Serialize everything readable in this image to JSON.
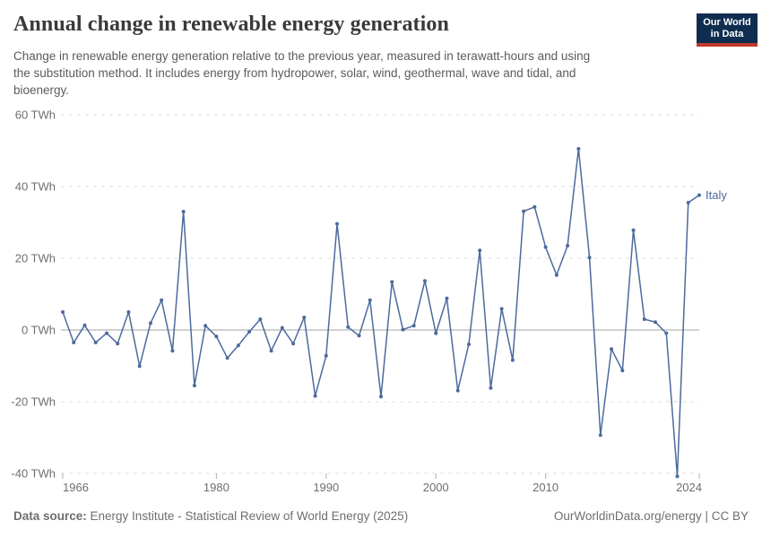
{
  "header": {
    "title": "Annual change in renewable energy generation",
    "subtitle_lines": [
      "Change in renewable energy generation relative to the previous year, measured in terawatt-hours and using",
      "the substitution method. It includes energy from hydropower, solar, wind, geothermal, wave and tidal, and",
      "bioenergy."
    ],
    "logo": {
      "line1": "Our World",
      "line2": "in Data",
      "bg_color": "#0f2e4f",
      "stripe_color": "#c0392b"
    }
  },
  "chart_data": {
    "type": "line",
    "title": "Annual change in renewable energy generation",
    "unit": "TWh",
    "xlabel": "",
    "ylabel": "",
    "ylim": [
      -45,
      62
    ],
    "xlim": [
      1966,
      2024
    ],
    "grid": "horizontal-dashed",
    "zero_line": true,
    "y_ticks": [
      60,
      40,
      20,
      0,
      -20,
      -40
    ],
    "y_tick_suffix": " TWh",
    "x_ticks": [
      1966,
      1980,
      1990,
      2000,
      2010,
      2024
    ],
    "legend_position": "end-of-line",
    "series": [
      {
        "name": "Italy",
        "color": "#4c6a9c",
        "x": [
          1966,
          1967,
          1968,
          1969,
          1970,
          1971,
          1972,
          1973,
          1974,
          1975,
          1976,
          1977,
          1978,
          1979,
          1980,
          1981,
          1982,
          1983,
          1984,
          1985,
          1986,
          1987,
          1988,
          1989,
          1990,
          1991,
          1992,
          1993,
          1994,
          1995,
          1996,
          1997,
          1998,
          1999,
          2000,
          2001,
          2002,
          2003,
          2004,
          2005,
          2006,
          2007,
          2008,
          2009,
          2010,
          2011,
          2012,
          2013,
          2014,
          2015,
          2016,
          2017,
          2018,
          2019,
          2020,
          2021,
          2022,
          2023,
          2024
        ],
        "y": [
          5.0,
          -3.5,
          1.3,
          -3.5,
          -0.9,
          -3.8,
          5.0,
          -10.1,
          1.9,
          8.3,
          -5.8,
          33.0,
          -15.5,
          1.2,
          -1.8,
          -7.8,
          -4.3,
          -0.5,
          3.0,
          -5.8,
          0.6,
          -3.8,
          3.5,
          -18.4,
          -7.2,
          29.6,
          0.8,
          -1.6,
          8.3,
          -18.6,
          13.4,
          0.1,
          1.2,
          13.7,
          -0.9,
          8.8,
          -16.9,
          -4.0,
          22.2,
          -16.2,
          5.9,
          -8.4,
          33.1,
          34.3,
          23.1,
          15.3,
          23.5,
          50.5,
          20.2,
          -29.3,
          -5.3,
          -11.3,
          27.8,
          3.0,
          2.2,
          -0.9,
          -40.8,
          35.5,
          37.6
        ]
      }
    ]
  },
  "footer": {
    "source_label": "Data source:",
    "source_text": " Energy Institute - Statistical Review of World Energy (2025)",
    "site_credit": "OurWorldinData.org/energy | CC BY"
  }
}
